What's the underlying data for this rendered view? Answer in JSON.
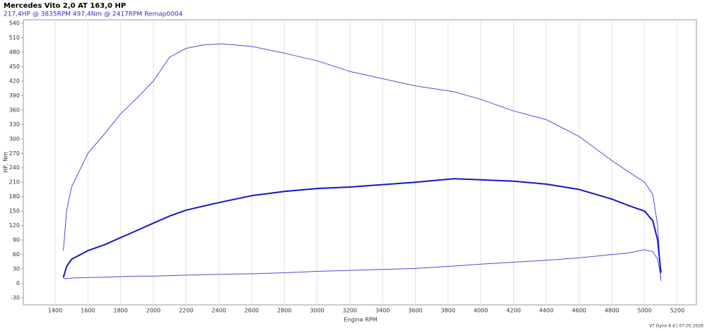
{
  "chart_data": {
    "type": "line",
    "title": "Mercedes Vito 2,0 AT 163,0 HP",
    "subtitle": "217,4HP @ 3835RPM 497,4Nm @ 2417RPM   Remap0004",
    "x_label": "Engine RPM",
    "y_label": "HP, Nm",
    "footer": "VT Dyno 6.4 | 07.05.2026",
    "x": [
      1450,
      1470,
      1500,
      1600,
      1700,
      1800,
      1900,
      2000,
      2100,
      2200,
      2300,
      2417,
      2600,
      2800,
      3000,
      3200,
      3400,
      3600,
      3835,
      4000,
      4200,
      4400,
      4600,
      4800,
      4900,
      5000,
      5050,
      5080,
      5100
    ],
    "series": [
      {
        "color": "#4c4ce0",
        "width": 1,
        "values": [
          68,
          150,
          200,
          270,
          310,
          352,
          385,
          420,
          470,
          488,
          495,
          497.4,
          492,
          478,
          462,
          440,
          425,
          410,
          398,
          382,
          358,
          340,
          305,
          255,
          232,
          210,
          185,
          120,
          5
        ]
      },
      {
        "color": "#1414c8",
        "width": 2,
        "values": [
          12,
          35,
          50,
          68,
          80,
          95,
          110,
          125,
          140,
          152,
          160,
          169,
          182,
          191,
          197,
          200,
          205,
          210,
          217.4,
          215,
          212,
          206,
          195,
          175,
          162,
          150,
          130,
          90,
          22
        ]
      },
      {
        "color": "#4c4ce0",
        "width": 1,
        "values": [
          10,
          10,
          11,
          12,
          13,
          14,
          15,
          15,
          16,
          17,
          18,
          19,
          20,
          22,
          25,
          27,
          29,
          31,
          36,
          40,
          44,
          48,
          53,
          60,
          63,
          70,
          66,
          50,
          12
        ]
      }
    ],
    "xlim": [
      1400,
      5200
    ],
    "xticks": [
      1400,
      1600,
      1800,
      2000,
      2200,
      2400,
      2600,
      2800,
      3000,
      3200,
      3400,
      3600,
      3800,
      4000,
      4200,
      4400,
      4600,
      4800,
      5000,
      5200
    ],
    "ylim": [
      -30,
      540
    ],
    "yticks": [
      -30,
      0,
      30,
      60,
      90,
      120,
      150,
      180,
      210,
      240,
      270,
      300,
      330,
      360,
      390,
      420,
      450,
      480,
      510,
      540
    ],
    "grid": "x"
  }
}
